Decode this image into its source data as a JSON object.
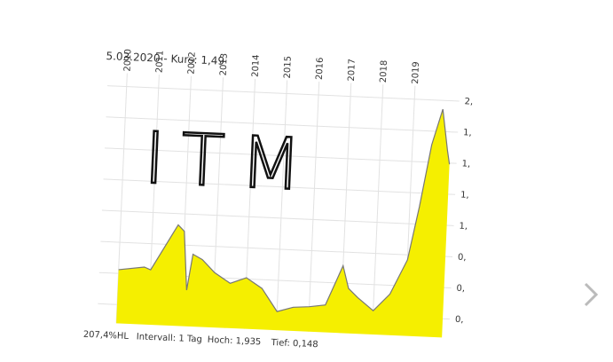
{
  "chart_data": {
    "type": "area",
    "title": "5.03.2020  - Kurs: 1,49",
    "annotation": "ITM",
    "footer": [
      "207,4%HL",
      "Intervall: 1 Tag",
      "Hoch: 1,935",
      "Tief: 0,148"
    ],
    "x": [
      2010.0,
      2010.8,
      2011.0,
      2011.8,
      2012.0,
      2012.15,
      2012.3,
      2012.6,
      2013.0,
      2013.5,
      2014.0,
      2014.5,
      2015.0,
      2015.5,
      2016.0,
      2016.5,
      2017.0,
      2017.2,
      2017.5,
      2018.0,
      2018.5,
      2019.0,
      2019.3,
      2019.6,
      2019.9,
      2020.1,
      2020.18
    ],
    "values": [
      0.53,
      0.56,
      0.54,
      0.91,
      0.86,
      0.39,
      0.68,
      0.64,
      0.54,
      0.46,
      0.51,
      0.43,
      0.25,
      0.29,
      0.3,
      0.32,
      0.64,
      0.46,
      0.39,
      0.29,
      0.43,
      0.71,
      1.14,
      1.64,
      1.93,
      1.6,
      1.49
    ],
    "color": "#f5ef00",
    "line_color": "#777777",
    "xlim": [
      2009.4,
      2020.4
    ],
    "xticks": [
      2010,
      2011,
      2012,
      2013,
      2014,
      2015,
      2016,
      2017,
      2018,
      2019
    ],
    "ylim": [
      0.1,
      2.05
    ],
    "yticks": [
      {
        "value": 0.25,
        "label": "0,"
      },
      {
        "value": 0.5,
        "label": "0,"
      },
      {
        "value": 0.75,
        "label": "0,"
      },
      {
        "value": 1.0,
        "label": "1,"
      },
      {
        "value": 1.25,
        "label": "1,"
      },
      {
        "value": 1.5,
        "label": "1,"
      },
      {
        "value": 1.75,
        "label": "1,"
      },
      {
        "value": 2.0,
        "label": "2,"
      }
    ],
    "grid": true
  }
}
